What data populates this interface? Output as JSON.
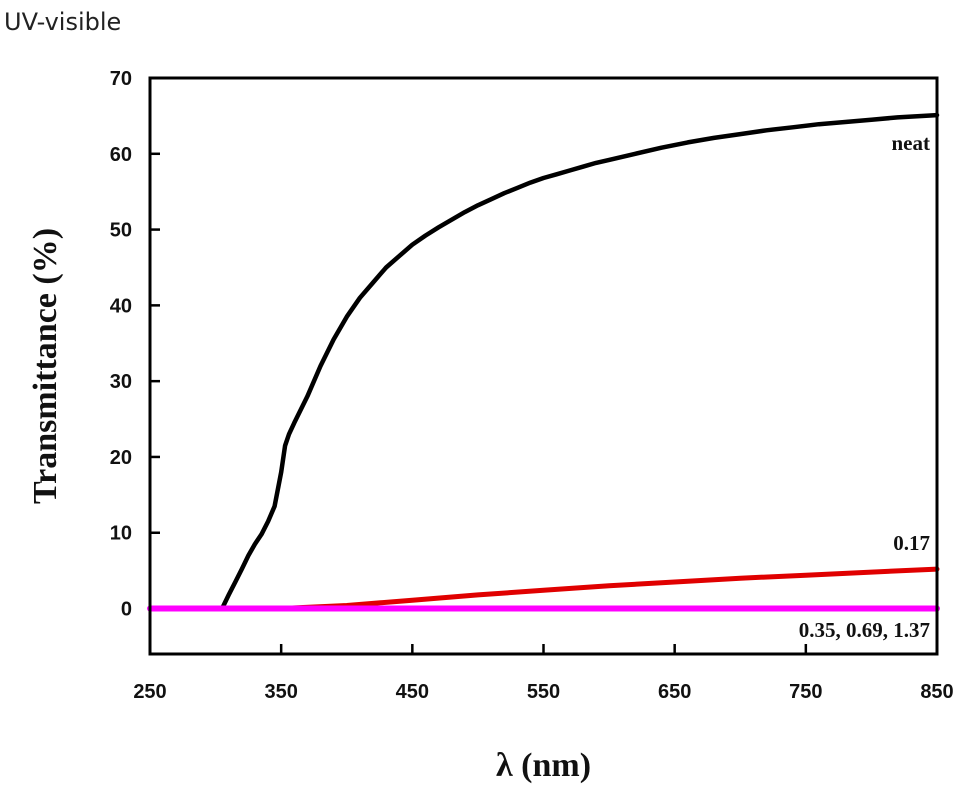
{
  "corner_title": "UV-visible",
  "chart_data": {
    "type": "line",
    "xlabel": "λ (nm)",
    "ylabel": "Transmittance (%)",
    "xlim": [
      250,
      850
    ],
    "ylim": [
      -6,
      70
    ],
    "xticks": [
      250,
      350,
      450,
      550,
      650,
      750,
      850
    ],
    "yticks": [
      0,
      10,
      20,
      30,
      40,
      50,
      60,
      70
    ],
    "grid": false,
    "series": [
      {
        "label": "neat",
        "color": "#000000",
        "x": [
          305,
          310,
          315,
          320,
          325,
          330,
          335,
          340,
          345,
          350,
          353,
          356,
          360,
          370,
          380,
          390,
          400,
          410,
          420,
          430,
          440,
          450,
          460,
          470,
          480,
          490,
          500,
          510,
          520,
          530,
          540,
          550,
          560,
          570,
          580,
          590,
          600,
          620,
          640,
          660,
          680,
          700,
          720,
          740,
          760,
          780,
          800,
          820,
          840,
          850
        ],
        "y": [
          0,
          1.8,
          3.5,
          5.2,
          7,
          8.5,
          9.8,
          11.5,
          13.5,
          18,
          21.5,
          23,
          24.5,
          28,
          32,
          35.5,
          38.5,
          41,
          43,
          45,
          46.5,
          48,
          49.2,
          50.3,
          51.3,
          52.3,
          53.2,
          54,
          54.8,
          55.5,
          56.2,
          56.8,
          57.3,
          57.8,
          58.3,
          58.8,
          59.2,
          60,
          60.8,
          61.5,
          62.1,
          62.6,
          63.1,
          63.5,
          63.9,
          64.2,
          64.5,
          64.8,
          65,
          65.1
        ]
      },
      {
        "label": "0.17",
        "color": "#e00000",
        "x": [
          250,
          350,
          400,
          450,
          500,
          550,
          600,
          650,
          700,
          750,
          800,
          850
        ],
        "y": [
          0,
          0,
          0.4,
          1.1,
          1.8,
          2.4,
          3,
          3.5,
          4,
          4.4,
          4.8,
          5.2
        ]
      },
      {
        "label": "0.35, 0.69, 1.37",
        "color": "#ff00ff",
        "x": [
          250,
          850
        ],
        "y": [
          0,
          0
        ]
      }
    ]
  }
}
